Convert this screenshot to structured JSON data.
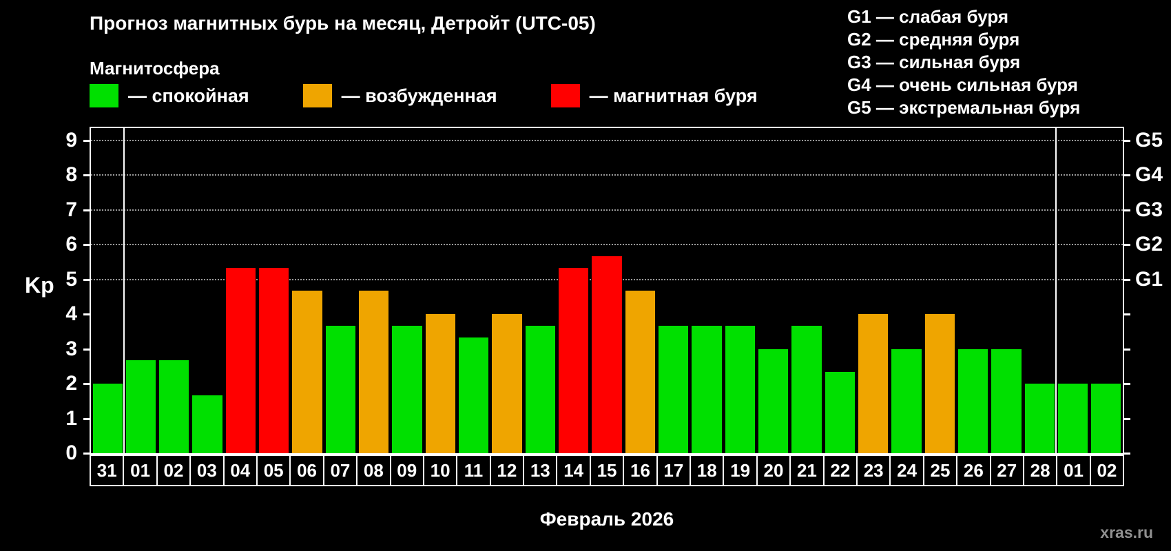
{
  "page": {
    "watermark": "xras.ru"
  },
  "legend": {
    "heading": "Магнитосфера",
    "items": [
      {
        "status": "quiet",
        "color": "#00e000",
        "label": "— спокойная"
      },
      {
        "status": "excited",
        "color": "#efa500",
        "label": "— возбужденная"
      },
      {
        "status": "storm",
        "color": "#ff0000",
        "label": "— магнитная буря"
      }
    ]
  },
  "g_scale_legend": {
    "lines": [
      "G1 — слабая буря",
      "G2 — средняя буря",
      "G3 — сильная буря",
      "G4 — очень сильная буря",
      "G5 — экстремальная буря"
    ]
  },
  "chart_data": {
    "type": "bar",
    "title": "Прогноз магнитных бурь на месяц, Детройт (UTC-05)",
    "xlabel": "Февраль 2026",
    "ylabel": "Kp",
    "ylim": [
      0,
      9
    ],
    "yticks": [
      0,
      1,
      2,
      3,
      4,
      5,
      6,
      7,
      8,
      9
    ],
    "grid_levels": [
      5,
      6,
      7,
      8,
      9
    ],
    "right_axis": [
      {
        "label": "G1",
        "kp": 5
      },
      {
        "label": "G2",
        "kp": 6
      },
      {
        "label": "G3",
        "kp": 7
      },
      {
        "label": "G4",
        "kp": 8
      },
      {
        "label": "G5",
        "kp": 9
      }
    ],
    "status_colors": {
      "quiet": "#00e000",
      "excited": "#efa500",
      "storm": "#ff0000"
    },
    "categories": [
      "31",
      "01",
      "02",
      "03",
      "04",
      "05",
      "06",
      "07",
      "08",
      "09",
      "10",
      "11",
      "12",
      "13",
      "14",
      "15",
      "16",
      "17",
      "18",
      "19",
      "20",
      "21",
      "22",
      "23",
      "24",
      "25",
      "26",
      "27",
      "28",
      "01",
      "02"
    ],
    "bars": [
      {
        "day": "31",
        "kp": 2.0,
        "status": "quiet"
      },
      {
        "day": "01",
        "kp": 2.67,
        "status": "quiet"
      },
      {
        "day": "02",
        "kp": 2.67,
        "status": "quiet"
      },
      {
        "day": "03",
        "kp": 1.67,
        "status": "quiet"
      },
      {
        "day": "04",
        "kp": 5.33,
        "status": "storm"
      },
      {
        "day": "05",
        "kp": 5.33,
        "status": "storm"
      },
      {
        "day": "06",
        "kp": 4.67,
        "status": "excited"
      },
      {
        "day": "07",
        "kp": 3.67,
        "status": "quiet"
      },
      {
        "day": "08",
        "kp": 4.67,
        "status": "excited"
      },
      {
        "day": "09",
        "kp": 3.67,
        "status": "quiet"
      },
      {
        "day": "10",
        "kp": 4.0,
        "status": "excited"
      },
      {
        "day": "11",
        "kp": 3.33,
        "status": "quiet"
      },
      {
        "day": "12",
        "kp": 4.0,
        "status": "excited"
      },
      {
        "day": "13",
        "kp": 3.67,
        "status": "quiet"
      },
      {
        "day": "14",
        "kp": 5.33,
        "status": "storm"
      },
      {
        "day": "15",
        "kp": 5.67,
        "status": "storm"
      },
      {
        "day": "16",
        "kp": 4.67,
        "status": "excited"
      },
      {
        "day": "17",
        "kp": 3.67,
        "status": "quiet"
      },
      {
        "day": "18",
        "kp": 3.67,
        "status": "quiet"
      },
      {
        "day": "19",
        "kp": 3.67,
        "status": "quiet"
      },
      {
        "day": "20",
        "kp": 3.0,
        "status": "quiet"
      },
      {
        "day": "21",
        "kp": 3.67,
        "status": "quiet"
      },
      {
        "day": "22",
        "kp": 2.33,
        "status": "quiet"
      },
      {
        "day": "23",
        "kp": 4.0,
        "status": "excited"
      },
      {
        "day": "24",
        "kp": 3.0,
        "status": "quiet"
      },
      {
        "day": "25",
        "kp": 4.0,
        "status": "excited"
      },
      {
        "day": "26",
        "kp": 3.0,
        "status": "quiet"
      },
      {
        "day": "27",
        "kp": 3.0,
        "status": "quiet"
      },
      {
        "day": "28",
        "kp": 2.0,
        "status": "quiet"
      },
      {
        "day": "01",
        "kp": 2.0,
        "status": "quiet"
      },
      {
        "day": "02",
        "kp": 2.0,
        "status": "quiet"
      }
    ],
    "month_separators_after_index": [
      0,
      28
    ]
  }
}
